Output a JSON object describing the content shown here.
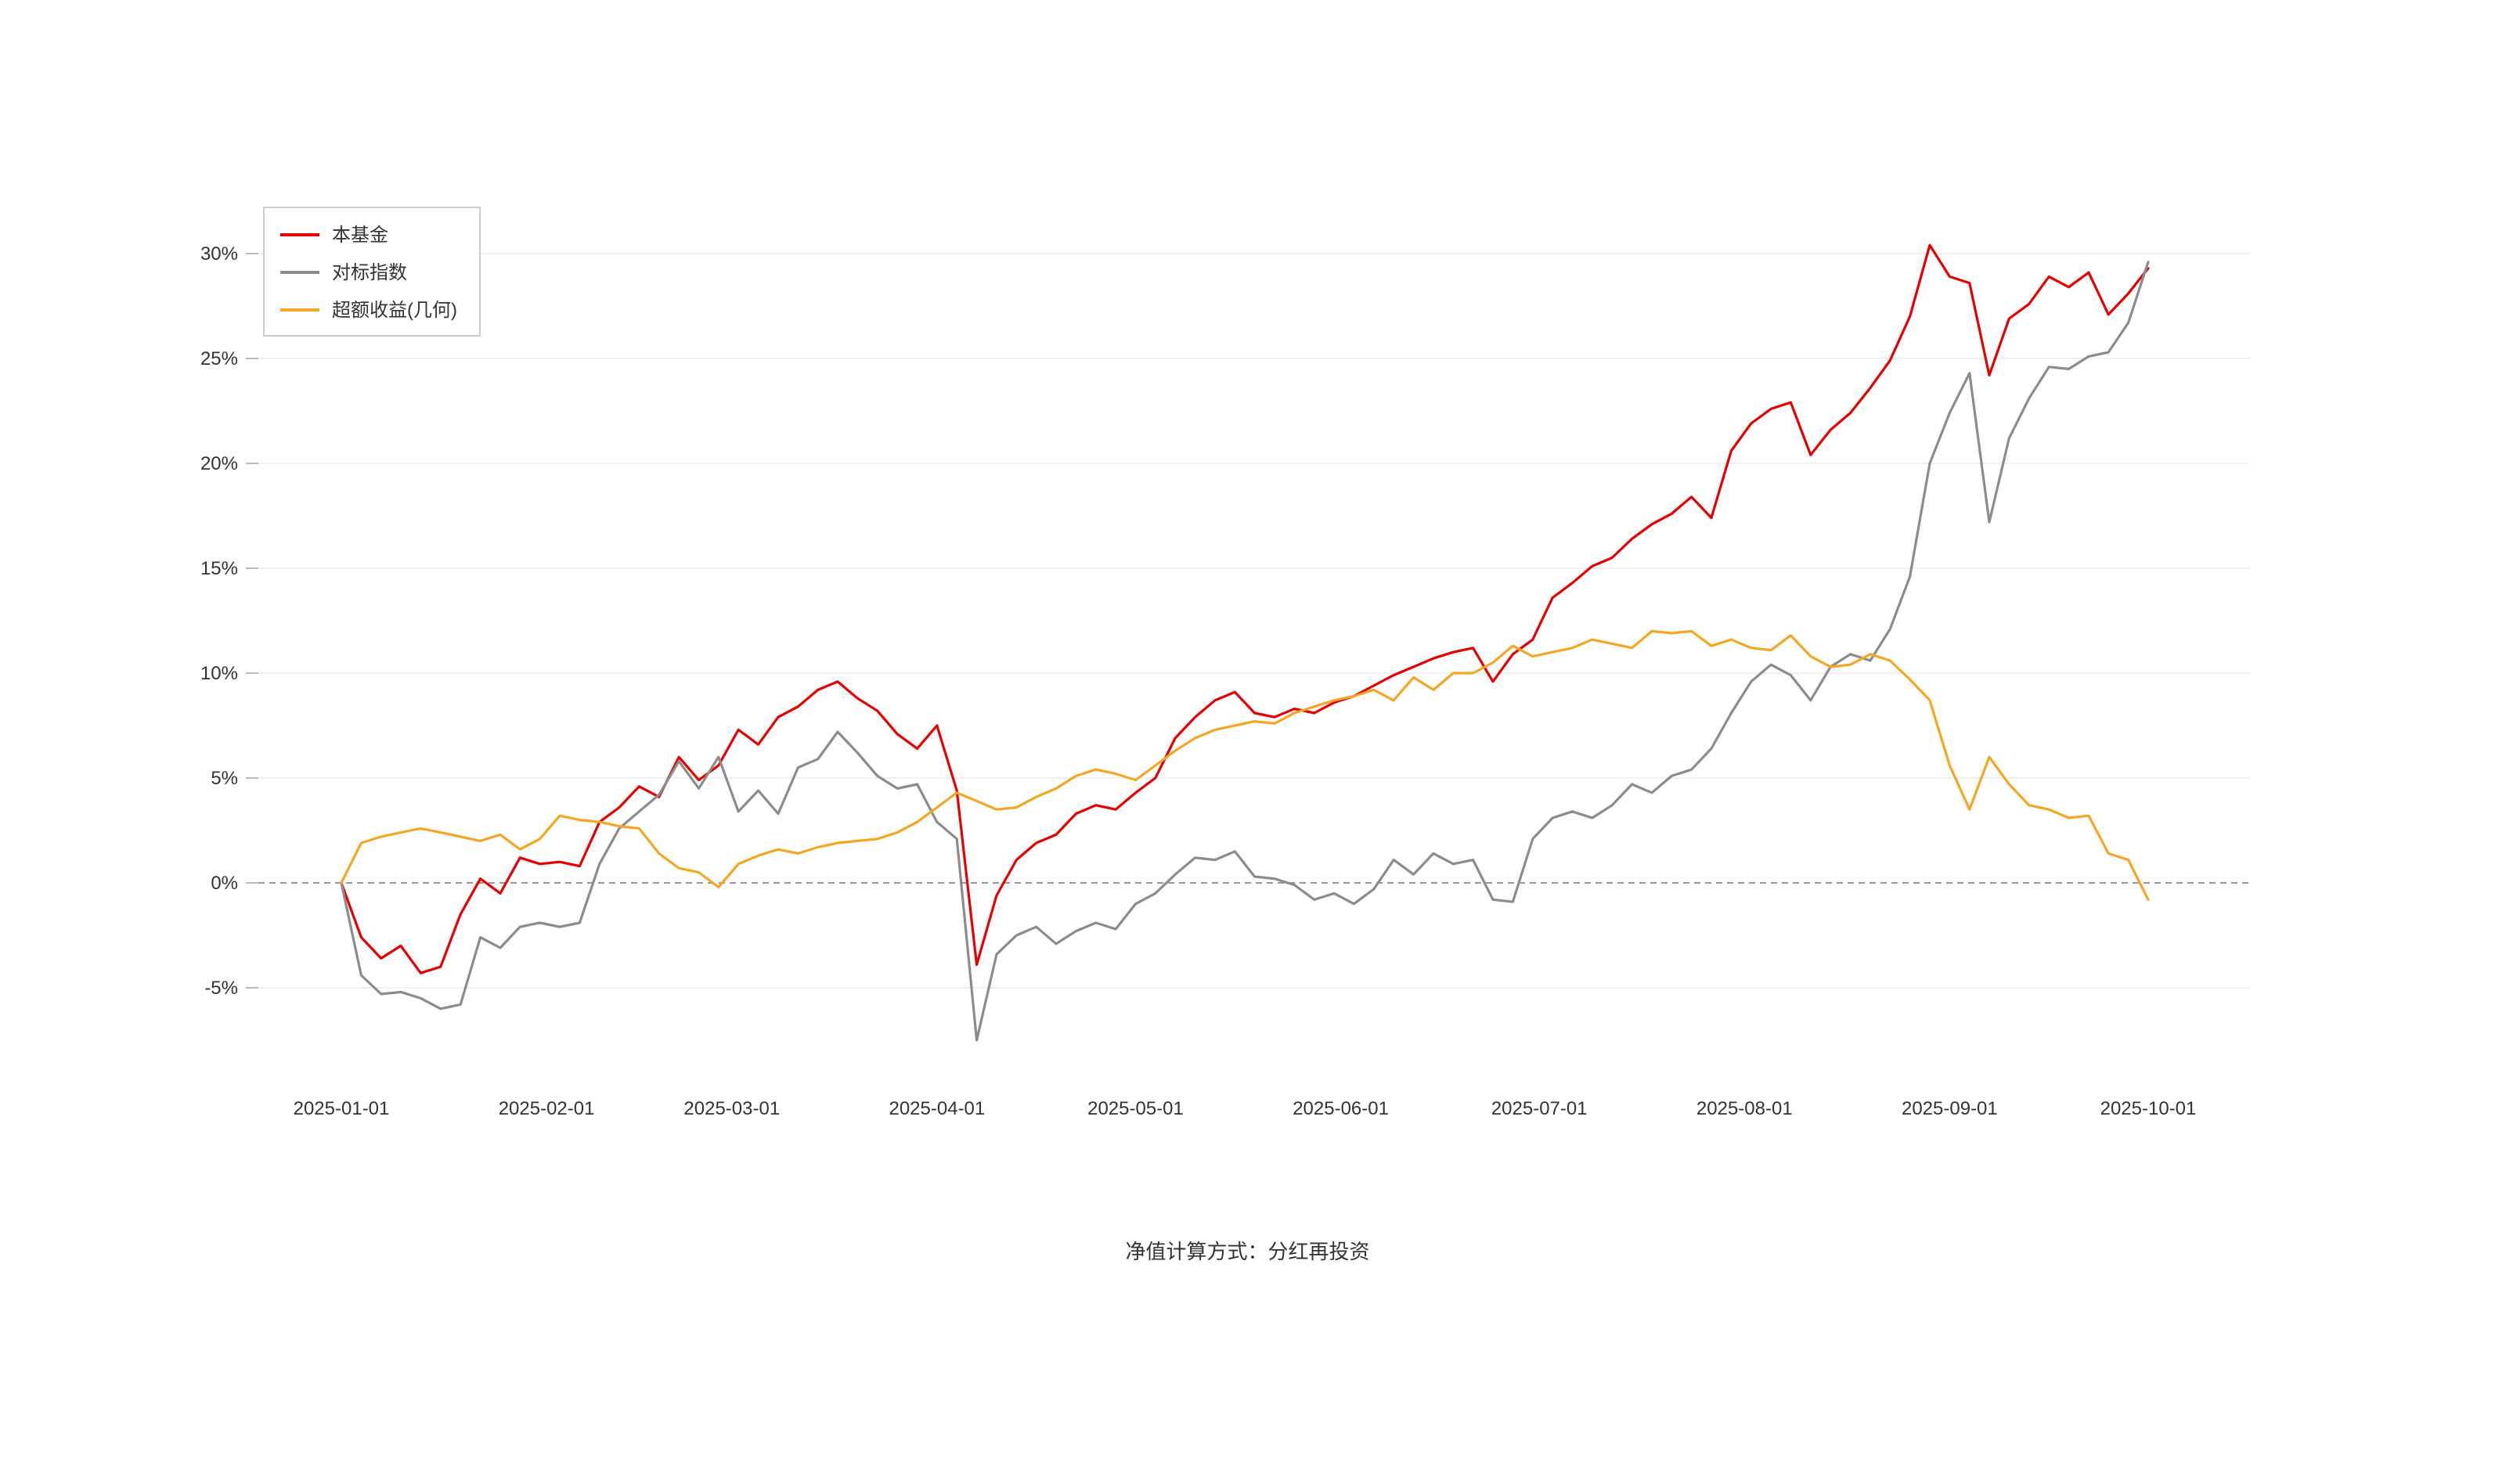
{
  "footer": {
    "note": "净值计算方式：分红再投资"
  },
  "chart_data": {
    "type": "line",
    "title": "",
    "xlabel": "",
    "ylabel": "",
    "background": "#ffffff",
    "grid": true,
    "legend_position": "top-left",
    "ylim": [
      -7.5,
      31
    ],
    "zero_line": {
      "style": "dashed",
      "color": "#999999"
    },
    "x_start_date": "2025-01-01",
    "x_step_days": 3,
    "y_ticks": [
      {
        "label": "30%",
        "value": 30
      },
      {
        "label": "25%",
        "value": 25
      },
      {
        "label": "20%",
        "value": 20
      },
      {
        "label": "15%",
        "value": 15
      },
      {
        "label": "10%",
        "value": 10
      },
      {
        "label": "5%",
        "value": 5
      },
      {
        "label": "0%",
        "value": 0
      },
      {
        "label": "-5%",
        "value": -5
      }
    ],
    "x_ticks": [
      {
        "label": "2025-01-01",
        "day": 0
      },
      {
        "label": "2025-02-01",
        "day": 31
      },
      {
        "label": "2025-03-01",
        "day": 59
      },
      {
        "label": "2025-04-01",
        "day": 90
      },
      {
        "label": "2025-05-01",
        "day": 120
      },
      {
        "label": "2025-06-01",
        "day": 151
      },
      {
        "label": "2025-07-01",
        "day": 181
      },
      {
        "label": "2025-08-01",
        "day": 212
      },
      {
        "label": "2025-09-01",
        "day": 243
      },
      {
        "label": "2025-10-01",
        "day": 273
      }
    ],
    "series": [
      {
        "name": "本基金",
        "color": "#e60000",
        "unit": "%",
        "values": [
          0,
          -2.6,
          -3.6,
          -3,
          -4.3,
          -4,
          -1.5,
          0.2,
          -0.5,
          1.2,
          0.9,
          1,
          0.8,
          2.9,
          3.6,
          4.6,
          4.1,
          6,
          4.9,
          5.6,
          7.3,
          6.6,
          7.9,
          8.4,
          9.2,
          9.6,
          8.8,
          8.2,
          7.1,
          6.4,
          7.5,
          4.4,
          -3.9,
          -0.6,
          1.1,
          1.9,
          2.3,
          3.3,
          3.7,
          3.5,
          4.3,
          5,
          6.9,
          7.9,
          8.7,
          9.1,
          8.1,
          7.9,
          8.3,
          8.1,
          8.6,
          8.9,
          9.4,
          9.9,
          10.3,
          10.7,
          11,
          11.2,
          9.6,
          10.9,
          11.6,
          13.6,
          14.3,
          15.1,
          15.5,
          16.4,
          17.1,
          17.6,
          18.4,
          17.4,
          20.6,
          21.9,
          22.6,
          22.9,
          20.4,
          21.6,
          22.4,
          23.6,
          24.9,
          27,
          30.4,
          28.9,
          28.6,
          24.2,
          26.9,
          27.6,
          28.9,
          28.4,
          29.1,
          27.1,
          28.1,
          29.3
        ]
      },
      {
        "name": "对标指数",
        "color": "#8c8c8c",
        "unit": "%",
        "values": [
          0,
          -4.4,
          -5.3,
          -5.2,
          -5.5,
          -6,
          -5.8,
          -2.6,
          -3.1,
          -2.1,
          -1.9,
          -2.1,
          -1.9,
          0.9,
          2.6,
          3.4,
          4.2,
          5.8,
          4.5,
          6,
          3.4,
          4.4,
          3.3,
          5.5,
          5.9,
          7.2,
          6.2,
          5.1,
          4.5,
          4.7,
          2.9,
          2.1,
          -7.5,
          -3.4,
          -2.5,
          -2.1,
          -2.9,
          -2.3,
          -1.9,
          -2.2,
          -1,
          -0.5,
          0.4,
          1.2,
          1.1,
          1.5,
          0.3,
          0.2,
          -0.1,
          -0.8,
          -0.5,
          -1,
          -0.3,
          1.1,
          0.4,
          1.4,
          0.9,
          1.1,
          -0.8,
          -0.9,
          2.1,
          3.1,
          3.4,
          3.1,
          3.7,
          4.7,
          4.3,
          5.1,
          5.4,
          6.4,
          8.1,
          9.6,
          10.4,
          9.9,
          8.7,
          10.3,
          10.9,
          10.6,
          12.1,
          14.6,
          20,
          22.4,
          24.3,
          17.2,
          21.2,
          23.1,
          24.6,
          24.5,
          25.1,
          25.3,
          26.7,
          29.6
        ]
      },
      {
        "name": "超额收益(几何)",
        "color": "#f5a623",
        "unit": "%",
        "values": [
          0,
          1.9,
          2.2,
          2.4,
          2.6,
          2.4,
          2.2,
          2,
          2.3,
          1.6,
          2.1,
          3.2,
          3,
          2.9,
          2.7,
          2.6,
          1.4,
          0.7,
          0.5,
          -0.2,
          0.9,
          1.3,
          1.6,
          1.4,
          1.7,
          1.9,
          2,
          2.1,
          2.4,
          2.9,
          3.6,
          4.3,
          3.9,
          3.5,
          3.6,
          4.1,
          4.5,
          5.1,
          5.4,
          5.2,
          4.9,
          5.6,
          6.3,
          6.9,
          7.3,
          7.5,
          7.7,
          7.6,
          8.1,
          8.4,
          8.7,
          8.9,
          9.2,
          8.7,
          9.8,
          9.2,
          10,
          10,
          10.5,
          11.3,
          10.8,
          11,
          11.2,
          11.6,
          11.4,
          11.2,
          12,
          11.9,
          12,
          11.3,
          11.6,
          11.2,
          11.1,
          11.8,
          10.8,
          10.3,
          10.4,
          10.9,
          10.6,
          9.7,
          8.7,
          5.6,
          3.5,
          6,
          4.7,
          3.7,
          3.5,
          3.1,
          3.2,
          1.4,
          1.1,
          -0.8
        ]
      }
    ]
  }
}
